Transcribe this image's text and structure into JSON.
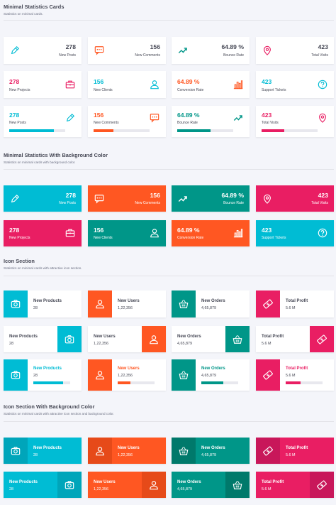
{
  "colors": {
    "cyan": "#00bcd4",
    "pink": "#e91e63",
    "orange": "#ff5722",
    "teal": "#009688"
  },
  "s1": {
    "title": "Minimal Statistics Cards",
    "sub": "Statistics on minimal cards.",
    "row1": [
      {
        "v": "278",
        "l": "New Posts",
        "icon": "pencil-icon"
      },
      {
        "v": "156",
        "l": "New Comments",
        "icon": "comment-icon"
      },
      {
        "v": "64.89 %",
        "l": "Bounce Rate",
        "icon": "trend-up-icon"
      },
      {
        "v": "423",
        "l": "Total Visits",
        "icon": "map-pin-icon"
      }
    ],
    "row2": [
      {
        "v": "278",
        "l": "New Projects",
        "icon": "briefcase-icon"
      },
      {
        "v": "156",
        "l": "New Clients",
        "icon": "user-icon"
      },
      {
        "v": "64.89 %",
        "l": "Conversion Rate",
        "icon": "bar-chart-icon"
      },
      {
        "v": "423",
        "l": "Support Tickets",
        "icon": "help-icon"
      }
    ],
    "row3": [
      {
        "v": "278",
        "l": "New Posts",
        "icon": "pencil-icon",
        "progress": 0.8
      },
      {
        "v": "156",
        "l": "New Comments",
        "icon": "comment-icon",
        "progress": 0.35
      },
      {
        "v": "64.89 %",
        "l": "Bounce Rate",
        "icon": "trend-up-icon",
        "progress": 0.6
      },
      {
        "v": "423",
        "l": "Total Visits",
        "icon": "map-pin-icon",
        "progress": 0.4
      }
    ]
  },
  "s2": {
    "title": "Minimal Statistics With Background Color",
    "sub": "Statistics on minimal cards with background color.",
    "row1": [
      {
        "v": "278",
        "l": "New Posts",
        "icon": "pencil-icon"
      },
      {
        "v": "156",
        "l": "New Comments",
        "icon": "comment-icon"
      },
      {
        "v": "64.89 %",
        "l": "Bounce Rate",
        "icon": "trend-up-icon"
      },
      {
        "v": "423",
        "l": "Total Visits",
        "icon": "map-pin-icon"
      }
    ],
    "row2": [
      {
        "v": "278",
        "l": "New Projects",
        "icon": "briefcase-icon"
      },
      {
        "v": "156",
        "l": "New Clients",
        "icon": "user-icon"
      },
      {
        "v": "64.89 %",
        "l": "Conversion Rate",
        "icon": "bar-chart-icon"
      },
      {
        "v": "423",
        "l": "Support Tickets",
        "icon": "help-icon"
      }
    ]
  },
  "s3": {
    "title": "Icon Section",
    "sub": "Statistics on minimal cards with attractive icon section.",
    "row1": [
      {
        "t": "New Products",
        "v": "28",
        "icon": "camera-icon"
      },
      {
        "t": "New Users",
        "v": "1,22,356",
        "icon": "user-icon"
      },
      {
        "t": "New Orders",
        "v": "4,65,879",
        "icon": "basket-icon"
      },
      {
        "t": "Total Profit",
        "v": "5.6 M",
        "icon": "money-icon"
      }
    ],
    "row2": [
      {
        "t": "New Products",
        "v": "28",
        "icon": "camera-icon"
      },
      {
        "t": "New Users",
        "v": "1,22,356",
        "icon": "user-icon"
      },
      {
        "t": "New Orders",
        "v": "4,65,879",
        "icon": "basket-icon"
      },
      {
        "t": "Total Profit",
        "v": "5.6 M",
        "icon": "money-icon"
      }
    ],
    "row3": [
      {
        "t": "New Products",
        "v": "28",
        "icon": "camera-icon",
        "progress": 0.8
      },
      {
        "t": "New Users",
        "v": "1,22,356",
        "icon": "user-icon",
        "progress": 0.35
      },
      {
        "t": "New Orders",
        "v": "4,65,879",
        "icon": "basket-icon",
        "progress": 0.6
      },
      {
        "t": "Total Profit",
        "v": "5.6 M",
        "icon": "money-icon",
        "progress": 0.4
      }
    ]
  },
  "s4": {
    "title": "Icon Section With Background Color",
    "sub": "Statistics on minimal cards with attractive icon section and background color.",
    "row1": [
      {
        "t": "New Products",
        "v": "28",
        "icon": "camera-icon"
      },
      {
        "t": "New Users",
        "v": "1,22,356",
        "icon": "user-icon"
      },
      {
        "t": "New Orders",
        "v": "4,65,879",
        "icon": "basket-icon"
      },
      {
        "t": "Total Profit",
        "v": "5.6 M",
        "icon": "money-icon"
      }
    ],
    "row2": [
      {
        "t": "New Products",
        "v": "28",
        "icon": "camera-icon"
      },
      {
        "t": "New Users",
        "v": "1,22,356",
        "icon": "user-icon"
      },
      {
        "t": "New Orders",
        "v": "4,65,879",
        "icon": "basket-icon"
      },
      {
        "t": "Total Profit",
        "v": "5.6 M",
        "icon": "money-icon"
      }
    ]
  }
}
